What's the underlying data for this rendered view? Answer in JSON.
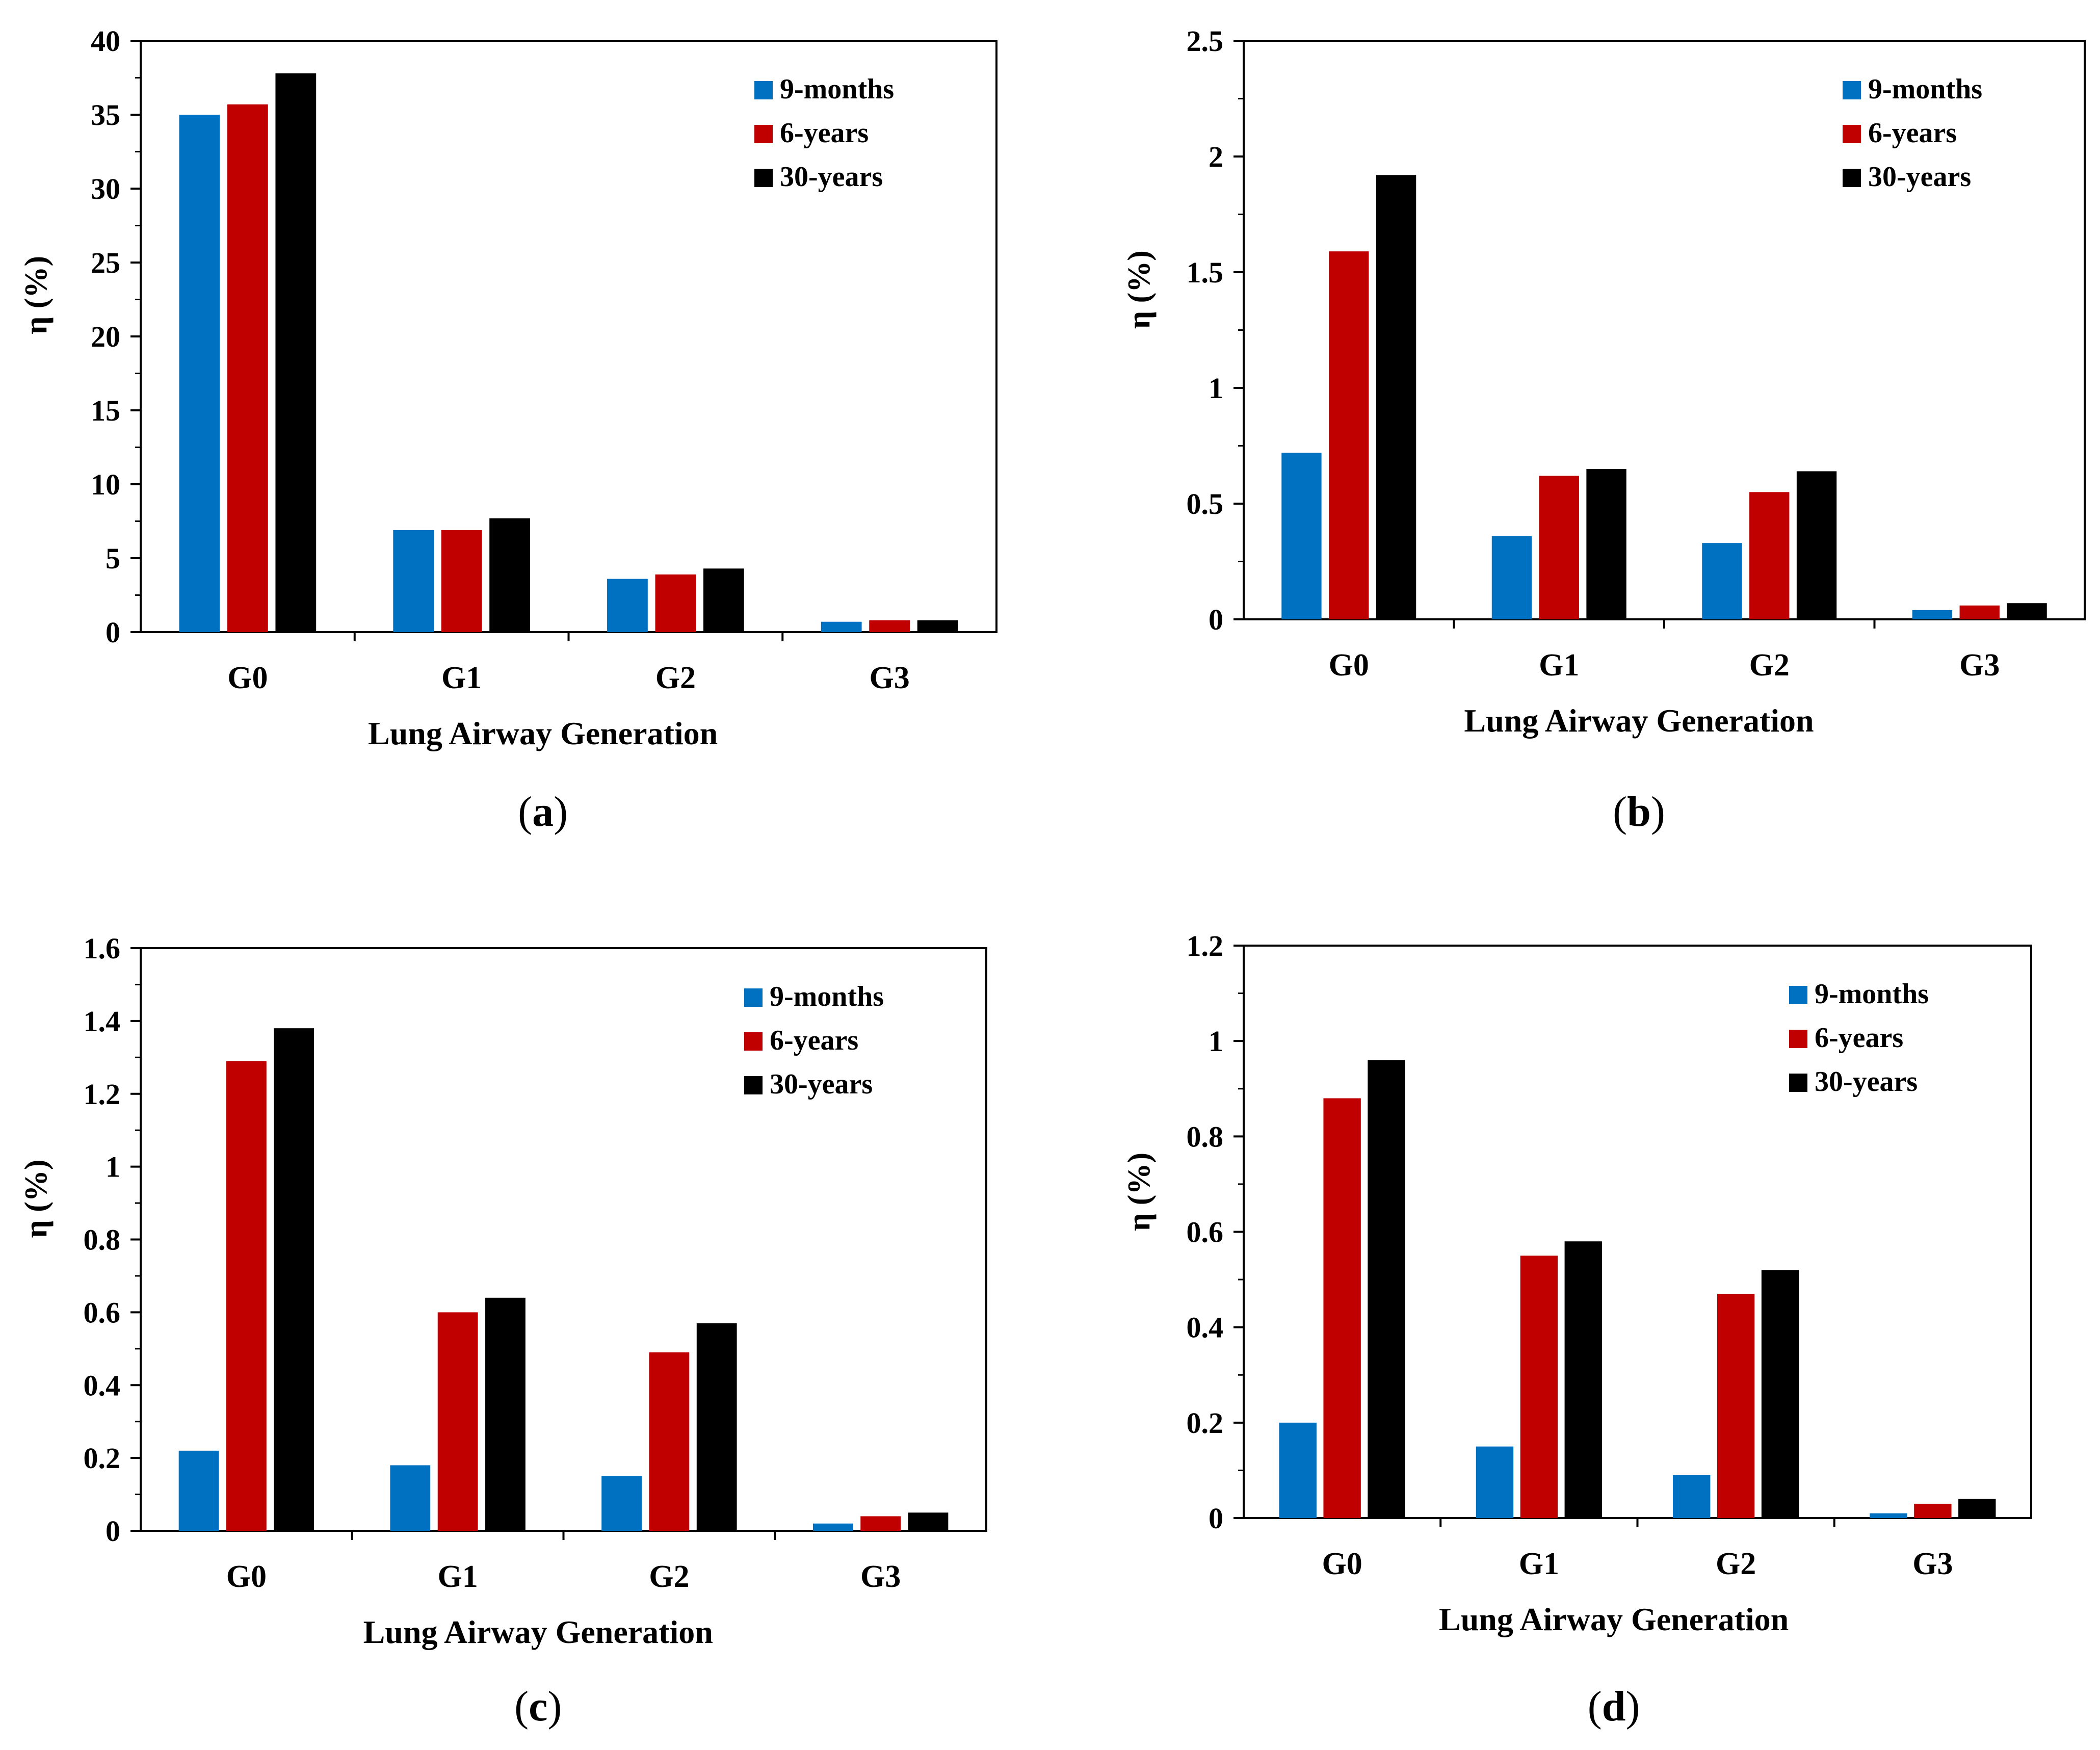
{
  "colors": {
    "9-months": "#0070c0",
    "6-years": "#c00000",
    "30-years": "#000000"
  },
  "chart_data": [
    {
      "panel": "a",
      "type": "bar",
      "categories": [
        "G0",
        "G1",
        "G2",
        "G3"
      ],
      "series": [
        {
          "name": "9-months",
          "values": [
            35.0,
            6.9,
            3.6,
            0.7
          ]
        },
        {
          "name": "6-years",
          "values": [
            35.7,
            6.9,
            3.9,
            0.8
          ]
        },
        {
          "name": "30-years",
          "values": [
            37.8,
            7.7,
            4.3,
            0.8
          ]
        }
      ],
      "xlabel": "Lung Airway Generation",
      "ylabel": "η (%)",
      "ylim": [
        0,
        40
      ],
      "yticks": [
        0,
        5,
        10,
        15,
        20,
        25,
        30,
        35,
        40
      ],
      "ytick_labels": [
        "0",
        "5",
        "10",
        "15",
        "20",
        "25",
        "30",
        "35",
        "40"
      ],
      "legend": "top-right",
      "caption_letter": "a"
    },
    {
      "panel": "b",
      "type": "bar",
      "categories": [
        "G0",
        "G1",
        "G2",
        "G3"
      ],
      "series": [
        {
          "name": "9-months",
          "values": [
            0.72,
            0.36,
            0.33,
            0.04
          ]
        },
        {
          "name": "6-years",
          "values": [
            1.59,
            0.62,
            0.55,
            0.06
          ]
        },
        {
          "name": "30-years",
          "values": [
            1.92,
            0.65,
            0.64,
            0.07
          ]
        }
      ],
      "xlabel": "Lung Airway Generation",
      "ylabel": "η (%)",
      "ylim": [
        0,
        2.5
      ],
      "yticks": [
        0,
        0.5,
        1,
        1.5,
        2,
        2.5
      ],
      "ytick_labels": [
        "0",
        "0.5",
        "1",
        "1.5",
        "2",
        "2.5"
      ],
      "legend": "top-right",
      "caption_letter": "b"
    },
    {
      "panel": "c",
      "type": "bar",
      "categories": [
        "G0",
        "G1",
        "G2",
        "G3"
      ],
      "series": [
        {
          "name": "9-months",
          "values": [
            0.22,
            0.18,
            0.15,
            0.02
          ]
        },
        {
          "name": "6-years",
          "values": [
            1.29,
            0.6,
            0.49,
            0.04
          ]
        },
        {
          "name": "30-years",
          "values": [
            1.38,
            0.64,
            0.57,
            0.05
          ]
        }
      ],
      "xlabel": "Lung Airway Generation",
      "ylabel": "η (%)",
      "ylim": [
        0,
        1.6
      ],
      "yticks": [
        0,
        0.2,
        0.4,
        0.6,
        0.8,
        1,
        1.2,
        1.4,
        1.6
      ],
      "ytick_labels": [
        "0",
        "0.2",
        "0.4",
        "0.6",
        "0.8",
        "1",
        "1.2",
        "1.4",
        "1.6"
      ],
      "legend": "top-right",
      "caption_letter": "c"
    },
    {
      "panel": "d",
      "type": "bar",
      "categories": [
        "G0",
        "G1",
        "G2",
        "G3"
      ],
      "series": [
        {
          "name": "9-months",
          "values": [
            0.2,
            0.15,
            0.09,
            0.01
          ]
        },
        {
          "name": "6-years",
          "values": [
            0.88,
            0.55,
            0.47,
            0.03
          ]
        },
        {
          "name": "30-years",
          "values": [
            0.96,
            0.58,
            0.52,
            0.04
          ]
        }
      ],
      "xlabel": "Lung Airway Generation",
      "ylabel": "η (%)",
      "ylim": [
        0,
        1.2
      ],
      "yticks": [
        0,
        0.2,
        0.4,
        0.6,
        0.8,
        1,
        1.2
      ],
      "ytick_labels": [
        "0",
        "0.2",
        "0.4",
        "0.6",
        "0.8",
        "1",
        "1.2"
      ],
      "legend": "top-right",
      "caption_letter": "d"
    }
  ]
}
